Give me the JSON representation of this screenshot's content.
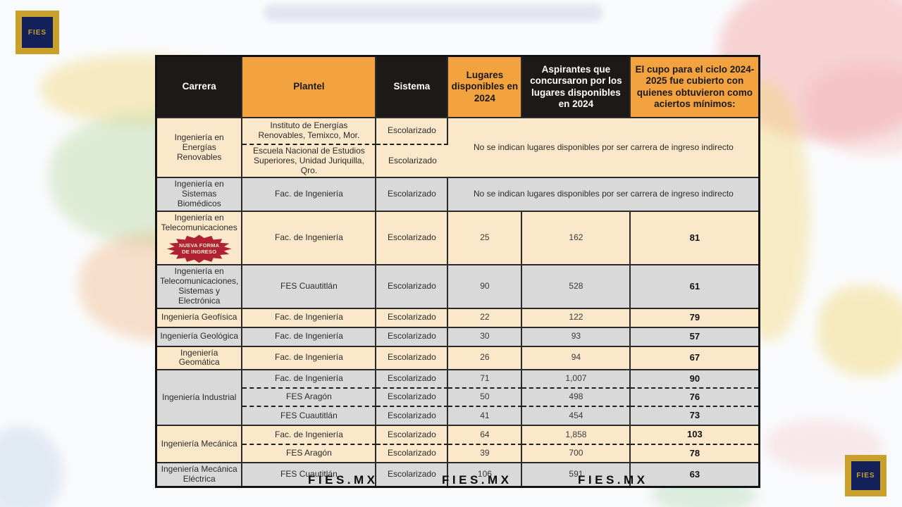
{
  "brand": {
    "logo_text": "FIES"
  },
  "footer": {
    "links": [
      "FIES.MX",
      "FIES.MX",
      "FIES.MX"
    ]
  },
  "colors": {
    "header_orange": "#F2A340",
    "header_dark": "#1C1917",
    "row_cream": "#FBE7CA",
    "row_gray": "#D9D9D9",
    "badge_red": "#B02233",
    "logo_gold": "#C8A02B",
    "logo_navy": "#13205A"
  },
  "table": {
    "headers": [
      {
        "label": "Carrera",
        "theme": "dark"
      },
      {
        "label": "Plantel",
        "theme": "orange"
      },
      {
        "label": "Sistema",
        "theme": "dark"
      },
      {
        "label": "Lugares disponibles en 2024",
        "theme": "orange"
      },
      {
        "label": "Aspirantes que concursaron por los lugares disponibles en 2024",
        "theme": "dark"
      },
      {
        "label": "El cupo para el ciclo 2024-2025 fue cubierto con quienes obtuvieron como aciertos mínimos:",
        "theme": "orange"
      }
    ],
    "groups": [
      {
        "carrera": "Ingeniería en Energías Renovables",
        "tone": "cream",
        "note": "No se indican lugares disponibles por ser carrera de ingreso indirecto",
        "rows": [
          {
            "plantel": "Instituto de Energías Renovables, Temixco, Mor.",
            "sistema": "Escolarizado"
          },
          {
            "plantel": "Escuela Nacional de Estudios Superiores, Unidad Juriquilla, Qro.",
            "sistema": "Escolarizado"
          }
        ]
      },
      {
        "carrera": "Ingeniería en Sistemas Biomédicos",
        "tone": "gray",
        "note": "No se indican lugares disponibles por ser carrera de ingreso indirecto",
        "rows": [
          {
            "plantel": "Fac. de Ingeniería",
            "sistema": "Escolarizado"
          }
        ]
      },
      {
        "carrera": "Ingeniería en Telecomunicaciones",
        "tone": "cream",
        "badge": "NUEVA FORMA DE INGRESO",
        "rows": [
          {
            "plantel": "Fac. de Ingeniería",
            "sistema": "Escolarizado",
            "lugares": "25",
            "aspirantes": "162",
            "cupo": "81"
          }
        ]
      },
      {
        "carrera": "Ingeniería en Telecomunicaciones, Sistemas y Electrónica",
        "tone": "gray",
        "rows": [
          {
            "plantel": "FES Cuautitlán",
            "sistema": "Escolarizado",
            "lugares": "90",
            "aspirantes": "528",
            "cupo": "61"
          }
        ]
      },
      {
        "carrera": "Ingeniería Geofísica",
        "tone": "cream",
        "rows": [
          {
            "plantel": "Fac. de Ingeniería",
            "sistema": "Escolarizado",
            "lugares": "22",
            "aspirantes": "122",
            "cupo": "79"
          }
        ]
      },
      {
        "carrera": "Ingeniería Geológica",
        "tone": "gray",
        "rows": [
          {
            "plantel": "Fac. de Ingeniería",
            "sistema": "Escolarizado",
            "lugares": "30",
            "aspirantes": "93",
            "cupo": "57"
          }
        ]
      },
      {
        "carrera": "Ingeniería Geomática",
        "tone": "cream",
        "rows": [
          {
            "plantel": "Fac. de Ingeniería",
            "sistema": "Escolarizado",
            "lugares": "26",
            "aspirantes": "94",
            "cupo": "67"
          }
        ]
      },
      {
        "carrera": "Ingeniería Industrial",
        "tone": "gray",
        "rows": [
          {
            "plantel": "Fac. de Ingeniería",
            "sistema": "Escolarizado",
            "lugares": "71",
            "aspirantes": "1,007",
            "cupo": "90"
          },
          {
            "plantel": "FES Aragón",
            "sistema": "Escolarizado",
            "lugares": "50",
            "aspirantes": "498",
            "cupo": "76"
          },
          {
            "plantel": "FES Cuautitlán",
            "sistema": "Escolarizado",
            "lugares": "41",
            "aspirantes": "454",
            "cupo": "73"
          }
        ]
      },
      {
        "carrera": "Ingeniería Mecánica",
        "tone": "cream",
        "rows": [
          {
            "plantel": "Fac. de Ingeniería",
            "sistema": "Escolarizado",
            "lugares": "64",
            "aspirantes": "1,858",
            "cupo": "103"
          },
          {
            "plantel": "FES Aragón",
            "sistema": "Escolarizado",
            "lugares": "39",
            "aspirantes": "700",
            "cupo": "78"
          }
        ]
      },
      {
        "carrera": "Ingeniería Mecánica Eléctrica",
        "tone": "gray",
        "rows": [
          {
            "plantel": "FES Cuautitlán",
            "sistema": "Escolarizado",
            "lugares": "106",
            "aspirantes": "591",
            "cupo": "63"
          }
        ]
      }
    ]
  }
}
